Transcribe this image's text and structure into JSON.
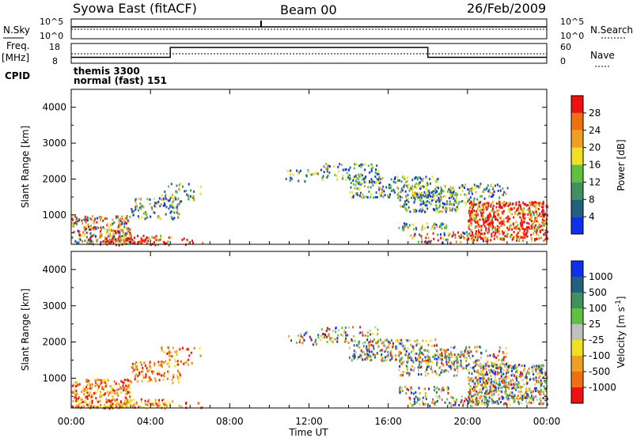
{
  "header": {
    "station": "Syowa East (fitACF)",
    "beam": "Beam 00",
    "date": "26/Feb/2009"
  },
  "noise_panel": {
    "left_label": "N.Sky",
    "right_label": "N.Search",
    "left_ticks": [
      "10^5",
      "10^0"
    ],
    "right_ticks": [
      "10^5",
      "10^0"
    ]
  },
  "freq_panel": {
    "left_label": "Freq.",
    "left_unit": "[MHz]",
    "right_label": "Nave",
    "left_ticks": [
      "18",
      "8"
    ],
    "right_ticks": [
      "60",
      "0"
    ],
    "freq_steps": [
      {
        "t0": 0,
        "t1": 5,
        "level": 0.3
      },
      {
        "t0": 5,
        "t1": 18,
        "level": 0.8
      },
      {
        "t0": 18,
        "t1": 24,
        "level": 0.3
      }
    ]
  },
  "cpid": {
    "label": "CPID",
    "line1": "themis 3300",
    "line2": "normal (fast) 151"
  },
  "colors": {
    "power": [
      "#1030f0",
      "#206080",
      "#409060",
      "#60c040",
      "#f0e020",
      "#f0a020",
      "#f07010",
      "#f01010"
    ],
    "velocity": [
      "#f01010",
      "#f07010",
      "#f0a020",
      "#f0e020",
      "#c0c0c0",
      "#60c040",
      "#409060",
      "#206080",
      "#1030f0"
    ]
  },
  "chart_data": [
    {
      "type": "heatmap",
      "title": "",
      "xlabel": "",
      "ylabel": "Slant Range [km]",
      "xlim": [
        0,
        24
      ],
      "ylim": [
        180,
        4500
      ],
      "y_ticks": [
        "1000",
        "2000",
        "3000",
        "4000"
      ],
      "colorbar_label": "Power [dB]",
      "colorbar_ticks": [
        "4",
        "8",
        "12",
        "16",
        "20",
        "24",
        "28"
      ],
      "colorbar_range": [
        0,
        30
      ]
    },
    {
      "type": "heatmap",
      "title": "",
      "xlabel": "Time UT",
      "ylabel": "Slant Range [km]",
      "xlim": [
        0,
        24
      ],
      "ylim": [
        180,
        4500
      ],
      "x_ticks": [
        "00:00",
        "04:00",
        "08:00",
        "12:00",
        "16:00",
        "20:00",
        "00:00"
      ],
      "y_ticks": [
        "1000",
        "2000",
        "3000",
        "4000"
      ],
      "colorbar_label": "Velocity [m s",
      "colorbar_label_sup": "-1",
      "colorbar_label_end": "]",
      "colorbar_ticks": [
        "1000",
        "500",
        "100",
        "25",
        "-25",
        "-100",
        "-500",
        "-1000"
      ]
    }
  ],
  "scatter_regions": [
    {
      "t0": 0.0,
      "t1": 3.0,
      "r0": 200,
      "r1": 1000,
      "d": 0.55
    },
    {
      "t0": 1.5,
      "t1": 5.0,
      "r0": 180,
      "r1": 450,
      "d": 0.5
    },
    {
      "t0": 3.0,
      "t1": 5.5,
      "r0": 900,
      "r1": 1500,
      "d": 0.35
    },
    {
      "t0": 4.5,
      "t1": 6.5,
      "r0": 1400,
      "r1": 1900,
      "d": 0.25
    },
    {
      "t0": 5.0,
      "t1": 7.0,
      "r0": 180,
      "r1": 400,
      "d": 0.12
    },
    {
      "t0": 10.8,
      "t1": 12.5,
      "r0": 1950,
      "r1": 2300,
      "d": 0.22
    },
    {
      "t0": 12.5,
      "t1": 15.5,
      "r0": 2000,
      "r1": 2450,
      "d": 0.3
    },
    {
      "t0": 14.0,
      "t1": 18.5,
      "r0": 1500,
      "r1": 2100,
      "d": 0.45
    },
    {
      "t0": 16.5,
      "t1": 19.5,
      "r0": 1100,
      "r1": 1700,
      "d": 0.4
    },
    {
      "t0": 18.5,
      "t1": 22.0,
      "r0": 1300,
      "r1": 1900,
      "d": 0.35
    },
    {
      "t0": 16.5,
      "t1": 19.0,
      "r0": 600,
      "r1": 800,
      "d": 0.45
    },
    {
      "t0": 17.0,
      "t1": 21.0,
      "r0": 250,
      "r1": 550,
      "d": 0.35
    },
    {
      "t0": 20.0,
      "t1": 24.0,
      "r0": 300,
      "r1": 1400,
      "d": 0.7
    }
  ]
}
